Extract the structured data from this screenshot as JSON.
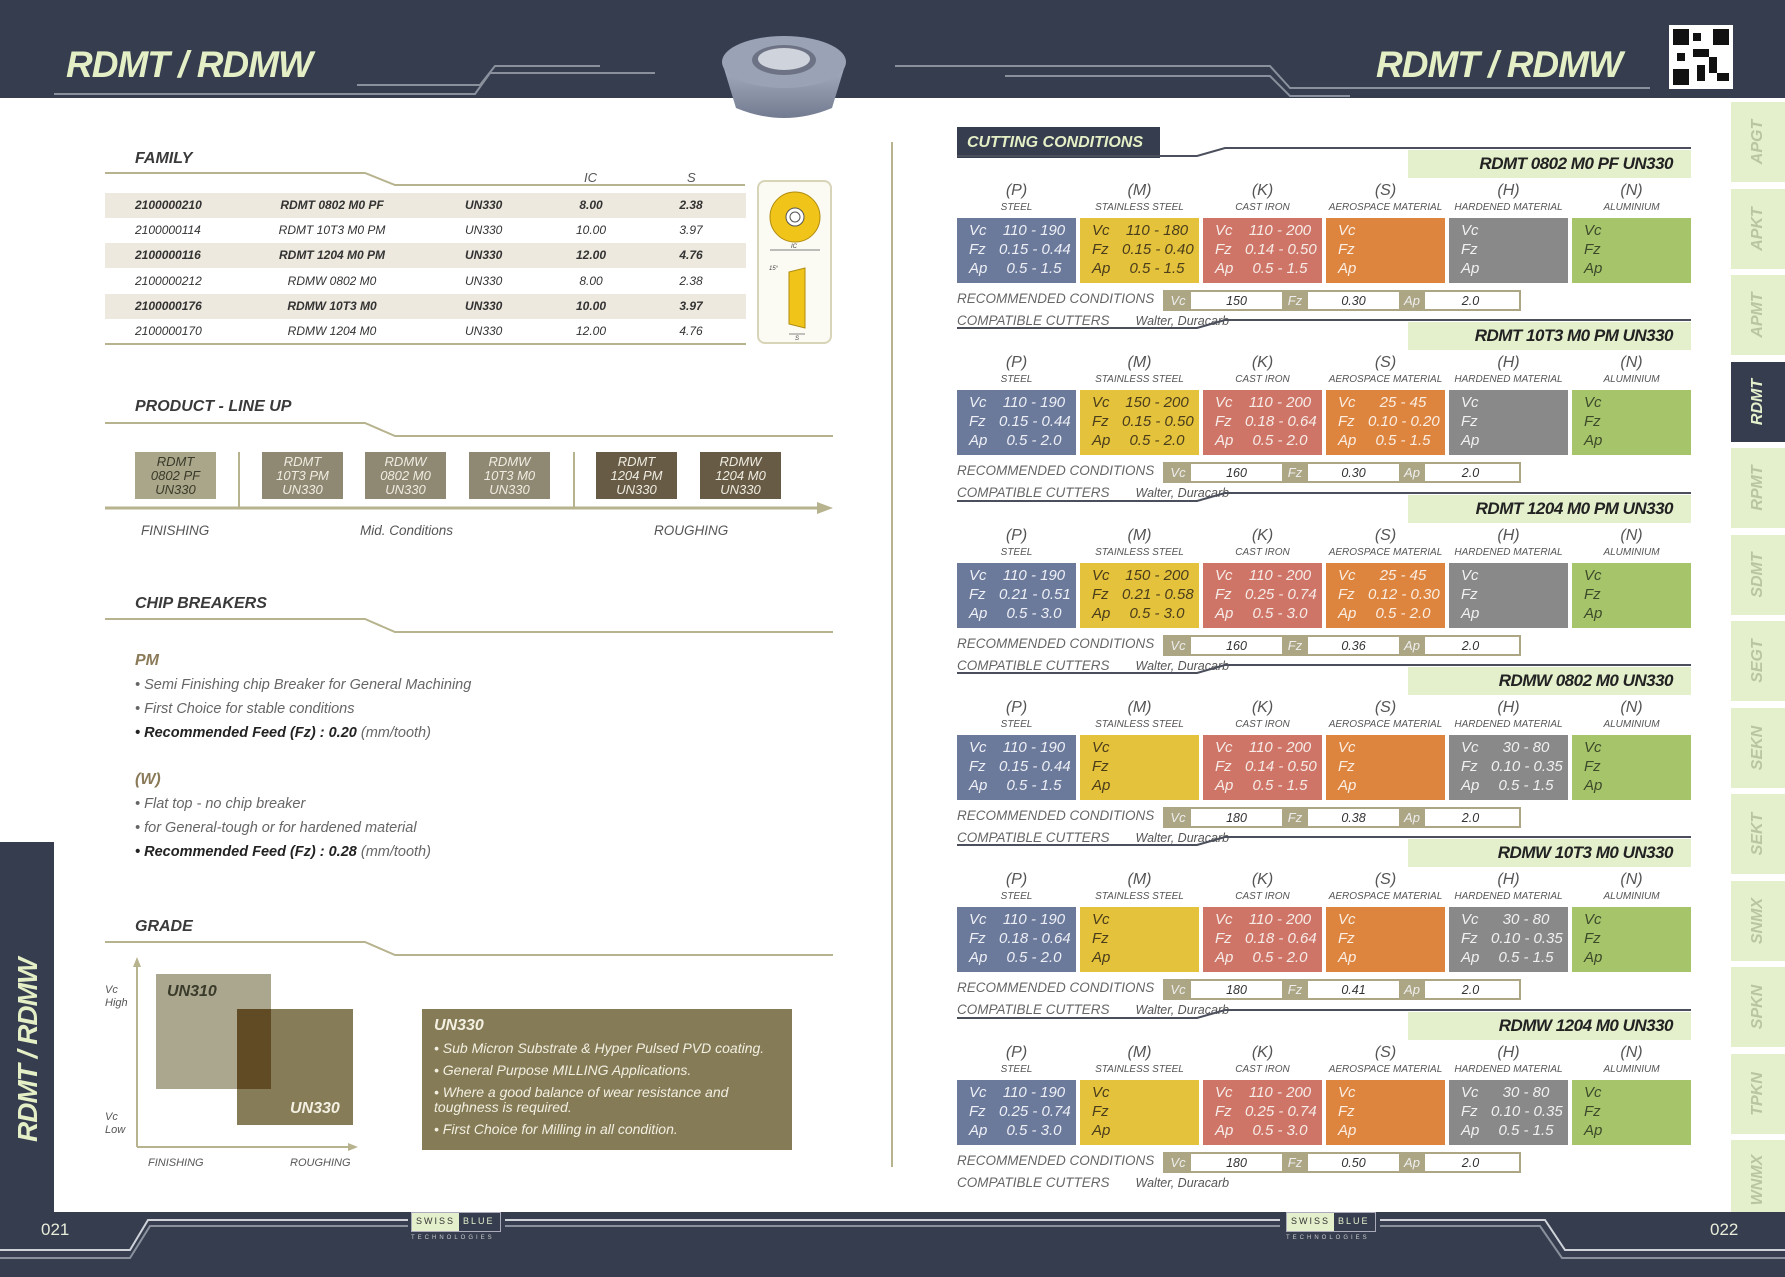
{
  "header": {
    "title_left": "RDMT / RDMW",
    "title_right": "RDMT / RDMW",
    "qr_icon": "qr-code-icon",
    "insert_image": "round-insert-image"
  },
  "side_tabs": [
    {
      "label": "APGT",
      "active": false
    },
    {
      "label": "APKT",
      "active": false
    },
    {
      "label": "APMT",
      "active": false
    },
    {
      "label": "RDMT",
      "active": true
    },
    {
      "label": "RPMT",
      "active": false
    },
    {
      "label": "SDMT",
      "active": false
    },
    {
      "label": "SEGT",
      "active": false
    },
    {
      "label": "SEKN",
      "active": false
    },
    {
      "label": "SEKT",
      "active": false
    },
    {
      "label": "SNMX",
      "active": false
    },
    {
      "label": "SPKN",
      "active": false
    },
    {
      "label": "TPKN",
      "active": false
    },
    {
      "label": "WNMX",
      "active": false
    }
  ],
  "left_strip_title": "RDMT / RDMW",
  "family": {
    "heading": "FAMILY",
    "columns": {
      "ic": "IC",
      "s": "S"
    },
    "rows": [
      {
        "code": "2100000210",
        "name": "RDMT 0802 M0 PF",
        "grade": "UN330",
        "ic": "8.00",
        "s": "2.38",
        "bold": true
      },
      {
        "code": "2100000114",
        "name": "RDMT 10T3 M0  PM",
        "grade": "UN330",
        "ic": "10.00",
        "s": "3.97",
        "bold": false
      },
      {
        "code": "2100000116",
        "name": "RDMT 1204 M0  PM",
        "grade": "UN330",
        "ic": "12.00",
        "s": "4.76",
        "bold": true
      },
      {
        "code": "2100000212",
        "name": "RDMW 0802 M0",
        "grade": "UN330",
        "ic": "8.00",
        "s": "2.38",
        "bold": false
      },
      {
        "code": "2100000176",
        "name": "RDMW 10T3 M0",
        "grade": "UN330",
        "ic": "10.00",
        "s": "3.97",
        "bold": true
      },
      {
        "code": "2100000170",
        "name": "RDMW 1204 M0",
        "grade": "UN330",
        "ic": "12.00",
        "s": "4.76",
        "bold": false
      }
    ],
    "diagram": {
      "ic_label": "IC",
      "angle_label": "15°",
      "s_label": "S"
    }
  },
  "lineup": {
    "heading": "PRODUCT - LINE UP",
    "items": [
      {
        "l1": "RDMT",
        "l2": "0802 PF",
        "l3": "UN330",
        "color": "#aaa68a",
        "text": "#3a3a2a"
      },
      {
        "l1": "RDMT",
        "l2": "10T3 PM",
        "l3": "UN330",
        "color": "#8f8872",
        "text": "#efece2"
      },
      {
        "l1": "RDMW",
        "l2": "0802 M0",
        "l3": "UN330",
        "color": "#8f8872",
        "text": "#efece2"
      },
      {
        "l1": "RDMW",
        "l2": "10T3 M0",
        "l3": "UN330",
        "color": "#8f8872",
        "text": "#efece2"
      },
      {
        "l1": "RDMT",
        "l2": "1204 PM",
        "l3": "UN330",
        "color": "#675b45",
        "text": "#efece2"
      },
      {
        "l1": "RDMW",
        "l2": "1204 M0",
        "l3": "UN330",
        "color": "#675b45",
        "text": "#efece2"
      }
    ],
    "labels": {
      "finishing": "FINISHING",
      "mid": "Mid. Conditions",
      "roughing": "ROUGHING"
    }
  },
  "chip_breakers": {
    "heading": "CHIP BREAKERS",
    "groups": [
      {
        "title": "PM",
        "bullets": [
          "Semi Finishing chip Breaker for General Machining",
          "First Choice for stable conditions"
        ],
        "feed_label": "Recommended Feed (Fz) : 0.20",
        "feed_unit": "(mm/tooth)"
      },
      {
        "title": "(W)",
        "bullets": [
          "Flat top - no chip breaker",
          "for General-tough  or  for hardened material"
        ],
        "feed_label": "Recommended Feed (Fz) : 0.28",
        "feed_unit": "(mm/tooth)"
      }
    ]
  },
  "grade": {
    "heading": "GRADE",
    "vc_high": [
      "Vc",
      "High"
    ],
    "vc_low": [
      "Vc",
      "Low"
    ],
    "x_left": "FINISHING",
    "x_right": "ROUGHING",
    "grade_a": "UN310",
    "grade_b": "UN330",
    "info": {
      "title": "UN330",
      "bullets": [
        "• Sub Micron Substrate & Hyper Pulsed  PVD coating.",
        "• General Purpose MILLING Applications.",
        "• Where a good balance of wear resistance and toughness is required.",
        "• First Choice for Milling  in all condition."
      ]
    }
  },
  "cutting": {
    "heading": "CUTTING CONDITIONS",
    "materials": [
      {
        "letter": "(P)",
        "name": "STEEL",
        "color": "#6b799b",
        "text": "#eef0f6"
      },
      {
        "letter": "(M)",
        "name": "STAINLESS STEEL",
        "color": "#e4c23b",
        "text": "#4a3d1c"
      },
      {
        "letter": "(K)",
        "name": "CAST IRON",
        "color": "#cf7567",
        "text": "#f6ece8"
      },
      {
        "letter": "(S)",
        "name": "AEROSPACE MATERIAL",
        "color": "#dd843f",
        "text": "#fbeee2"
      },
      {
        "letter": "(H)",
        "name": "HARDENED MATERIAL",
        "color": "#898989",
        "text": "#f1f1f1"
      },
      {
        "letter": "(N)",
        "name": "ALUMINIUM",
        "color": "#a6c56b",
        "text": "#3d4a2a"
      }
    ],
    "param_labels": [
      "Vc",
      "Fz",
      "Ap"
    ],
    "recommended_label": "RECOMMENDED CONDITIONS",
    "compatible_label": "COMPATIBLE CUTTERS",
    "sections": [
      {
        "title": "RDMT 0802 M0 PF UN330",
        "values": [
          [
            "110 - 190",
            "0.15 - 0.44",
            "0.5 - 1.5"
          ],
          [
            "110 - 180",
            "0.15 - 0.40",
            "0.5 - 1.5"
          ],
          [
            "110 - 200",
            "0.14 - 0.50",
            "0.5 - 1.5"
          ],
          [
            "",
            "",
            ""
          ],
          [
            "",
            "",
            ""
          ],
          [
            "",
            "",
            ""
          ]
        ],
        "recommended": {
          "vc": "150",
          "fz": "0.30",
          "ap": "2.0"
        },
        "cutters": "Walter, Duracarb"
      },
      {
        "title": "RDMT 10T3 M0 PM UN330",
        "values": [
          [
            "110 - 190",
            "0.15 - 0.44",
            "0.5 - 2.0"
          ],
          [
            "150 - 200",
            "0.15 - 0.50",
            "0.5 - 2.0"
          ],
          [
            "110 - 200",
            "0.18 - 0.64",
            "0.5 - 2.0"
          ],
          [
            "25 - 45",
            "0.10 - 0.20",
            "0.5 - 1.5"
          ],
          [
            "",
            "",
            ""
          ],
          [
            "",
            "",
            ""
          ]
        ],
        "recommended": {
          "vc": "160",
          "fz": "0.30",
          "ap": "2.0"
        },
        "cutters": "Walter, Duracarb"
      },
      {
        "title": "RDMT 1204 M0 PM UN330",
        "values": [
          [
            "110 - 190",
            "0.21 - 0.51",
            "0.5 - 3.0"
          ],
          [
            "150 - 200",
            "0.21 - 0.58",
            "0.5 - 3.0"
          ],
          [
            "110 - 200",
            "0.25 - 0.74",
            "0.5 - 3.0"
          ],
          [
            "25 - 45",
            "0.12 - 0.30",
            "0.5 - 2.0"
          ],
          [
            "",
            "",
            ""
          ],
          [
            "",
            "",
            ""
          ]
        ],
        "recommended": {
          "vc": "160",
          "fz": "0.36",
          "ap": "2.0"
        },
        "cutters": "Walter, Duracarb"
      },
      {
        "title": "RDMW 0802 M0 UN330",
        "values": [
          [
            "110 - 190",
            "0.15 - 0.44",
            "0.5 - 1.5"
          ],
          [
            "",
            "",
            ""
          ],
          [
            "110 - 200",
            "0.14 - 0.50",
            "0.5 - 1.5"
          ],
          [
            "",
            "",
            ""
          ],
          [
            "30 - 80",
            "0.10 - 0.35",
            "0.5 - 1.5"
          ],
          [
            "",
            "",
            ""
          ]
        ],
        "recommended": {
          "vc": "180",
          "fz": "0.38",
          "ap": "2.0"
        },
        "cutters": "Walter, Duracarb"
      },
      {
        "title": "RDMW 10T3 M0 UN330",
        "values": [
          [
            "110 - 190",
            "0.18 - 0.64",
            "0.5 - 2.0"
          ],
          [
            "",
            "",
            ""
          ],
          [
            "110 - 200",
            "0.18 - 0.64",
            "0.5 - 2.0"
          ],
          [
            "",
            "",
            ""
          ],
          [
            "30 - 80",
            "0.10 - 0.35",
            "0.5 - 1.5"
          ],
          [
            "",
            "",
            ""
          ]
        ],
        "recommended": {
          "vc": "180",
          "fz": "0.41",
          "ap": "2.0"
        },
        "cutters": "Walter, Duracarb"
      },
      {
        "title": "RDMW 1204 M0  UN330",
        "values": [
          [
            "110 - 190",
            "0.25 - 0.74",
            "0.5 - 3.0"
          ],
          [
            "",
            "",
            ""
          ],
          [
            "110 - 200",
            "0.25 - 0.74",
            "0.5 - 3.0"
          ],
          [
            "",
            "",
            ""
          ],
          [
            "30 - 80",
            "0.10 - 0.35",
            "0.5 - 1.5"
          ],
          [
            "",
            "",
            ""
          ]
        ],
        "recommended": {
          "vc": "180",
          "fz": "0.50",
          "ap": "2.0"
        },
        "cutters": "Walter, Duracarb"
      }
    ]
  },
  "footer": {
    "page_left": "021",
    "page_right": "022",
    "logo_a": "SWISS",
    "logo_b": "BLUE",
    "logo_sub": "TECHNOLOGIES"
  }
}
